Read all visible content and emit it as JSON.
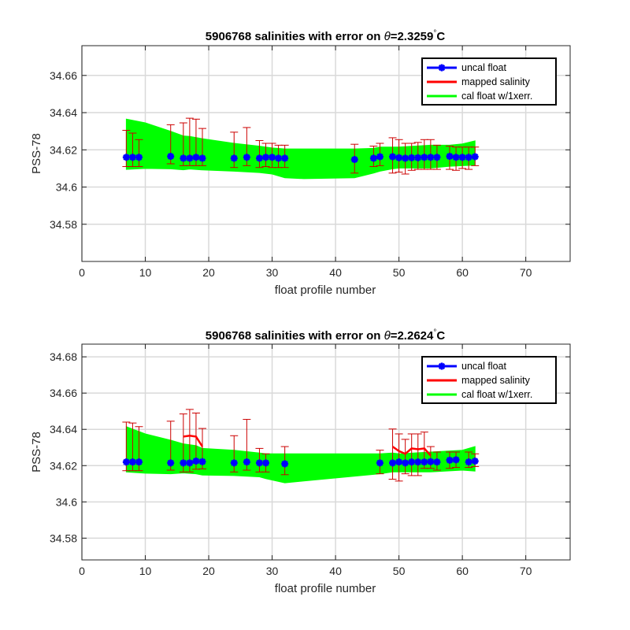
{
  "colors": {
    "uncal": "#0000ff",
    "mapped": "#ff0000",
    "cal": "#00ff00",
    "errorbar": "#cc0000",
    "grid": "#d9d9d9"
  },
  "chart_data": [
    {
      "type": "line",
      "title_prefix": "5906768 salinities with error on ",
      "title_theta": "θ",
      "title_value": "=2.3259",
      "title_deg": "°",
      "title_unit": "C",
      "xlabel": "float profile number",
      "ylabel": "PSS-78",
      "xlim": [
        0,
        77
      ],
      "ylim": [
        34.56,
        34.676
      ],
      "xticks": [
        0,
        10,
        20,
        30,
        40,
        50,
        60,
        70
      ],
      "xtick_labels": [
        "0",
        "10",
        "20",
        "30",
        "40",
        "50",
        "60",
        "70"
      ],
      "yticks": [
        34.58,
        34.6,
        34.62,
        34.64,
        34.66
      ],
      "ytick_labels": [
        "34.58",
        "34.6",
        "34.62",
        "34.64",
        "34.66"
      ],
      "grid": true,
      "legend_position": "top-right",
      "legend": [
        "uncal float",
        "mapped salinity",
        "cal float w/1xerr."
      ],
      "series": [
        {
          "name": "uncal float",
          "x": [
            7,
            8,
            9,
            14,
            16,
            17,
            18,
            19,
            24,
            26,
            28,
            29,
            30,
            31,
            32,
            43,
            46,
            47,
            49,
            50,
            51,
            52,
            53,
            54,
            55,
            56,
            58,
            59,
            60,
            61,
            62
          ],
          "values": [
            34.616,
            34.616,
            34.616,
            34.6165,
            34.6155,
            34.6155,
            34.616,
            34.6155,
            34.6155,
            34.616,
            34.6155,
            34.616,
            34.616,
            34.6155,
            34.6155,
            34.6148,
            34.6155,
            34.6163,
            34.6163,
            34.6158,
            34.6155,
            34.6158,
            34.6158,
            34.616,
            34.616,
            34.616,
            34.6165,
            34.616,
            34.616,
            34.616,
            34.6163
          ]
        },
        {
          "name": "mapped salinity",
          "x": [],
          "values": []
        },
        {
          "name": "cal float w/1xerr.",
          "x": [
            7,
            10,
            14,
            16,
            17,
            19,
            24,
            28,
            30,
            32,
            35,
            43,
            46,
            47,
            49,
            50,
            55,
            58,
            60,
            62
          ],
          "lower": [
            34.6095,
            34.61,
            34.6098,
            34.6093,
            34.6097,
            34.6092,
            34.6085,
            34.6078,
            34.607,
            34.605,
            34.6045,
            34.605,
            34.6075,
            34.6085,
            34.6098,
            34.6102,
            34.6102,
            34.6112,
            34.6115,
            34.6118
          ],
          "upper": [
            34.6365,
            34.6345,
            34.63,
            34.6275,
            34.6272,
            34.626,
            34.6235,
            34.622,
            34.621,
            34.6205,
            34.6205,
            34.6205,
            34.6208,
            34.6215,
            34.6215,
            34.6215,
            34.6225,
            34.6225,
            34.6232,
            34.6248
          ]
        },
        {
          "name": "error bars",
          "x": [
            7,
            8,
            9,
            14,
            16,
            17,
            18,
            19,
            24,
            26,
            28,
            29,
            30,
            31,
            32,
            43,
            46,
            47,
            49,
            50,
            51,
            52,
            53,
            54,
            55,
            56,
            58,
            59,
            60,
            61,
            62
          ],
          "lower": [
            34.611,
            34.611,
            34.611,
            34.6125,
            34.6115,
            34.6115,
            34.6115,
            34.6115,
            34.6105,
            34.6115,
            34.6105,
            34.611,
            34.6105,
            34.6105,
            34.6105,
            34.6075,
            34.611,
            34.6115,
            34.6075,
            34.608,
            34.607,
            34.609,
            34.6095,
            34.6095,
            34.6095,
            34.6095,
            34.6095,
            34.609,
            34.61,
            34.6095,
            34.6115
          ],
          "upper": [
            34.6305,
            34.629,
            34.6255,
            34.6335,
            34.6345,
            34.637,
            34.6365,
            34.6315,
            34.6295,
            34.632,
            34.625,
            34.6235,
            34.6235,
            34.6225,
            34.6225,
            34.623,
            34.622,
            34.6235,
            34.6265,
            34.6255,
            34.6235,
            34.6235,
            34.624,
            34.6255,
            34.6255,
            34.6225,
            34.622,
            34.6215,
            34.6215,
            34.6215,
            34.6215
          ]
        }
      ]
    },
    {
      "type": "line",
      "title_prefix": "5906768 salinities with error on ",
      "title_theta": "θ",
      "title_value": "=2.2624",
      "title_deg": "°",
      "title_unit": "C",
      "xlabel": "float profile number",
      "ylabel": "PSS-78",
      "xlim": [
        0,
        77
      ],
      "ylim": [
        34.568,
        34.687
      ],
      "xticks": [
        0,
        10,
        20,
        30,
        40,
        50,
        60,
        70
      ],
      "xtick_labels": [
        "0",
        "10",
        "20",
        "30",
        "40",
        "50",
        "60",
        "70"
      ],
      "yticks": [
        34.58,
        34.6,
        34.62,
        34.64,
        34.66,
        34.68
      ],
      "ytick_labels": [
        "34.58",
        "34.6",
        "34.62",
        "34.64",
        "34.66",
        "34.68"
      ],
      "grid": true,
      "legend_position": "top-right",
      "legend": [
        "uncal float",
        "mapped salinity",
        "cal float w/1xerr."
      ],
      "series": [
        {
          "name": "uncal float",
          "x": [
            7,
            8,
            9,
            14,
            16,
            17,
            18,
            19,
            24,
            26,
            28,
            29,
            32,
            47,
            49,
            50,
            51,
            52,
            53,
            54,
            55,
            56,
            58,
            59,
            61,
            62
          ],
          "values": [
            34.622,
            34.622,
            34.622,
            34.6215,
            34.6215,
            34.6215,
            34.6225,
            34.6222,
            34.6215,
            34.622,
            34.6215,
            34.6215,
            34.621,
            34.6215,
            34.6215,
            34.622,
            34.6215,
            34.622,
            34.622,
            34.622,
            34.6222,
            34.622,
            34.623,
            34.6232,
            34.622,
            34.6225
          ]
        },
        {
          "name": "mapped salinity",
          "segments": [
            {
              "x": [
                16,
                17,
                18,
                19
              ],
              "values": [
                34.636,
                34.6365,
                34.636,
                34.6305
              ]
            },
            {
              "x": [
                49,
                50,
                51,
                52,
                53,
                54,
                55
              ],
              "values": [
                34.6305,
                34.628,
                34.6265,
                34.6295,
                34.629,
                34.6295,
                34.6255
              ]
            }
          ]
        },
        {
          "name": "cal float w/1xerr.",
          "x": [
            7,
            10,
            14,
            16,
            18,
            19,
            24,
            28,
            29,
            32,
            35,
            47,
            49,
            50,
            55,
            60,
            62
          ],
          "lower": [
            34.6165,
            34.6158,
            34.6155,
            34.616,
            34.6155,
            34.6148,
            34.6145,
            34.6138,
            34.6128,
            34.6105,
            34.6115,
            34.6155,
            34.6165,
            34.6165,
            34.6165,
            34.6175,
            34.617
          ],
          "upper": [
            34.6415,
            34.6375,
            34.634,
            34.632,
            34.631,
            34.6295,
            34.6285,
            34.627,
            34.6265,
            34.6265,
            34.6265,
            34.6265,
            34.627,
            34.6265,
            34.6275,
            34.6285,
            34.6305
          ]
        },
        {
          "name": "error bars",
          "x": [
            7,
            8,
            9,
            14,
            16,
            17,
            18,
            19,
            24,
            26,
            28,
            29,
            32,
            47,
            49,
            50,
            51,
            52,
            53,
            54,
            55,
            56,
            58,
            59,
            61,
            62
          ],
          "lower": [
            34.6172,
            34.6172,
            34.6172,
            34.6175,
            34.6165,
            34.6165,
            34.618,
            34.6182,
            34.6165,
            34.6175,
            34.6165,
            34.6165,
            34.615,
            34.6155,
            34.6125,
            34.6115,
            34.6155,
            34.6145,
            34.6145,
            34.6185,
            34.6185,
            34.6175,
            34.6185,
            34.619,
            34.619,
            34.6195
          ],
          "upper": [
            34.644,
            34.6435,
            34.6415,
            34.6445,
            34.6485,
            34.651,
            34.649,
            34.6405,
            34.6365,
            34.6455,
            34.6295,
            34.6265,
            34.6305,
            34.6285,
            34.6402,
            34.6375,
            34.6345,
            34.6375,
            34.6375,
            34.6385,
            34.6305,
            34.6275,
            34.6275,
            34.6275,
            34.6275,
            34.6265
          ]
        }
      ]
    }
  ]
}
